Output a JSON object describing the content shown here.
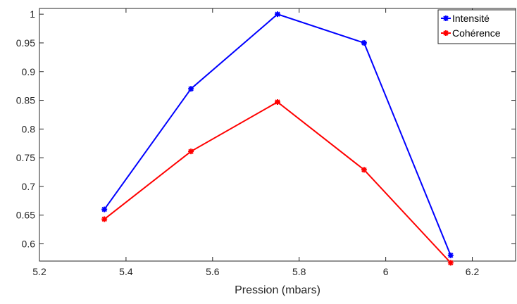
{
  "chart_data": {
    "type": "line",
    "title": "",
    "xlabel": "Pression (mbars)",
    "ylabel": "",
    "xlim": [
      5.2,
      6.3
    ],
    "ylim": [
      0.57,
      1.01
    ],
    "xticks": [
      5.2,
      5.4,
      5.6,
      5.8,
      6.0,
      6.2
    ],
    "xtick_labels": [
      "5.2",
      "5.4",
      "5.6",
      "5.8",
      "6",
      "6.2"
    ],
    "yticks": [
      0.6,
      0.65,
      0.7,
      0.75,
      0.8,
      0.85,
      0.9,
      0.95,
      1.0
    ],
    "ytick_labels": [
      "0.6",
      "0.65",
      "0.7",
      "0.75",
      "0.8",
      "0.85",
      "0.9",
      "0.95",
      "1"
    ],
    "grid": false,
    "legend_position": "top-right",
    "x": [
      5.35,
      5.55,
      5.75,
      5.95,
      6.15
    ],
    "series": [
      {
        "name": "Intensité",
        "color": "#0000ff",
        "marker": "asterisk",
        "values": [
          0.66,
          0.87,
          1.0,
          0.95,
          0.58
        ]
      },
      {
        "name": "Cohérence",
        "color": "#ff0000",
        "marker": "asterisk",
        "values": [
          0.643,
          0.761,
          0.847,
          0.729,
          0.567
        ]
      }
    ]
  }
}
